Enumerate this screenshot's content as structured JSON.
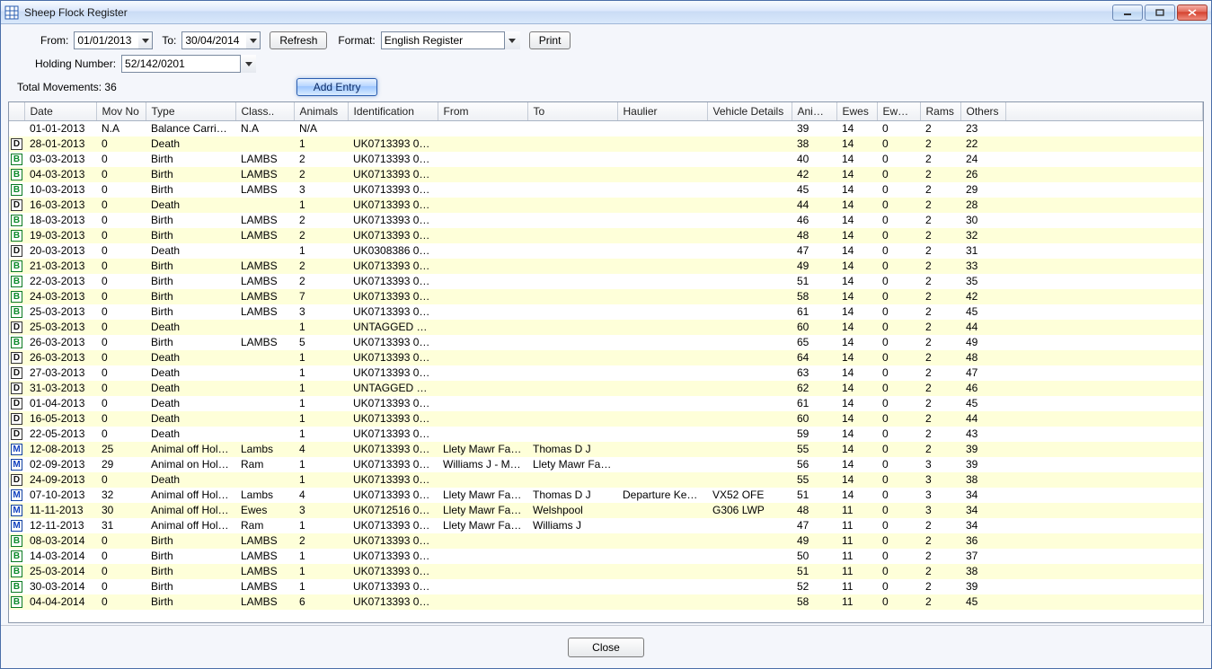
{
  "window": {
    "title": "Sheep Flock Register"
  },
  "toolbar": {
    "from_label": "From:",
    "from_value": "01/01/2013",
    "to_label": "To:",
    "to_value": "30/04/2014",
    "refresh": "Refresh",
    "format_label": "Format:",
    "format_value": "English Register",
    "print": "Print",
    "holding_label": "Holding Number:",
    "holding_value": "52/142/0201",
    "total_movements_label": "Total Movements:",
    "total_movements_value": "36",
    "add_entry": "Add Entry"
  },
  "footer": {
    "close": "Close"
  },
  "columns": [
    "Date",
    "Mov No",
    "Type",
    "Class..",
    "Animals",
    "Identification",
    "From",
    "To",
    "Haulier",
    "Vehicle Details",
    "Anim...",
    "Ewes",
    "Ewe ...",
    "Rams",
    "Others"
  ],
  "colors": {
    "alt_row": "#feffd9",
    "window_bg": "#f4f6fb",
    "titlebar_border": "#9fb7d8"
  },
  "rows": [
    {
      "icon": "",
      "date": "01-01-2013",
      "movno": "N.A",
      "type": "Balance Carried...",
      "class": "N.A",
      "animals": "N/A",
      "ident": "",
      "from": "",
      "to": "",
      "haulier": "",
      "vehicle": "",
      "anim": "39",
      "ewes": "14",
      "ewe2": "0",
      "rams": "2",
      "others": "23"
    },
    {
      "icon": "D",
      "date": "28-01-2013",
      "movno": "0",
      "type": "Death",
      "class": "",
      "animals": "1",
      "ident": "UK0713393 000...",
      "from": "",
      "to": "",
      "haulier": "",
      "vehicle": "",
      "anim": "38",
      "ewes": "14",
      "ewe2": "0",
      "rams": "2",
      "others": "22"
    },
    {
      "icon": "B",
      "date": "03-03-2013",
      "movno": "0",
      "type": "Birth",
      "class": "LAMBS",
      "animals": "2",
      "ident": "UK0713393 000...",
      "from": "",
      "to": "",
      "haulier": "",
      "vehicle": "",
      "anim": "40",
      "ewes": "14",
      "ewe2": "0",
      "rams": "2",
      "others": "24"
    },
    {
      "icon": "B",
      "date": "04-03-2013",
      "movno": "0",
      "type": "Birth",
      "class": "LAMBS",
      "animals": "2",
      "ident": "UK0713393 000...",
      "from": "",
      "to": "",
      "haulier": "",
      "vehicle": "",
      "anim": "42",
      "ewes": "14",
      "ewe2": "0",
      "rams": "2",
      "others": "26"
    },
    {
      "icon": "B",
      "date": "10-03-2013",
      "movno": "0",
      "type": "Birth",
      "class": "LAMBS",
      "animals": "3",
      "ident": "UK0713393 000...",
      "from": "",
      "to": "",
      "haulier": "",
      "vehicle": "",
      "anim": "45",
      "ewes": "14",
      "ewe2": "0",
      "rams": "2",
      "others": "29"
    },
    {
      "icon": "D",
      "date": "16-03-2013",
      "movno": "0",
      "type": "Death",
      "class": "",
      "animals": "1",
      "ident": "UK0713393 000...",
      "from": "",
      "to": "",
      "haulier": "",
      "vehicle": "",
      "anim": "44",
      "ewes": "14",
      "ewe2": "0",
      "rams": "2",
      "others": "28"
    },
    {
      "icon": "B",
      "date": "18-03-2013",
      "movno": "0",
      "type": "Birth",
      "class": "LAMBS",
      "animals": "2",
      "ident": "UK0713393 000...",
      "from": "",
      "to": "",
      "haulier": "",
      "vehicle": "",
      "anim": "46",
      "ewes": "14",
      "ewe2": "0",
      "rams": "2",
      "others": "30"
    },
    {
      "icon": "B",
      "date": "19-03-2013",
      "movno": "0",
      "type": "Birth",
      "class": "LAMBS",
      "animals": "2",
      "ident": "UK0713393 000...",
      "from": "",
      "to": "",
      "haulier": "",
      "vehicle": "",
      "anim": "48",
      "ewes": "14",
      "ewe2": "0",
      "rams": "2",
      "others": "32"
    },
    {
      "icon": "D",
      "date": "20-03-2013",
      "movno": "0",
      "type": "Death",
      "class": "",
      "animals": "1",
      "ident": "UK0308386 001...",
      "from": "",
      "to": "",
      "haulier": "",
      "vehicle": "",
      "anim": "47",
      "ewes": "14",
      "ewe2": "0",
      "rams": "2",
      "others": "31"
    },
    {
      "icon": "B",
      "date": "21-03-2013",
      "movno": "0",
      "type": "Birth",
      "class": "LAMBS",
      "animals": "2",
      "ident": "UK0713393 000...",
      "from": "",
      "to": "",
      "haulier": "",
      "vehicle": "",
      "anim": "49",
      "ewes": "14",
      "ewe2": "0",
      "rams": "2",
      "others": "33"
    },
    {
      "icon": "B",
      "date": "22-03-2013",
      "movno": "0",
      "type": "Birth",
      "class": "LAMBS",
      "animals": "2",
      "ident": "UK0713393 000...",
      "from": "",
      "to": "",
      "haulier": "",
      "vehicle": "",
      "anim": "51",
      "ewes": "14",
      "ewe2": "0",
      "rams": "2",
      "others": "35"
    },
    {
      "icon": "B",
      "date": "24-03-2013",
      "movno": "0",
      "type": "Birth",
      "class": "LAMBS",
      "animals": "7",
      "ident": "UK0713393 000...",
      "from": "",
      "to": "",
      "haulier": "",
      "vehicle": "",
      "anim": "58",
      "ewes": "14",
      "ewe2": "0",
      "rams": "2",
      "others": "42"
    },
    {
      "icon": "B",
      "date": "25-03-2013",
      "movno": "0",
      "type": "Birth",
      "class": "LAMBS",
      "animals": "3",
      "ident": "UK0713393 000...",
      "from": "",
      "to": "",
      "haulier": "",
      "vehicle": "",
      "anim": "61",
      "ewes": "14",
      "ewe2": "0",
      "rams": "2",
      "others": "45"
    },
    {
      "icon": "D",
      "date": "25-03-2013",
      "movno": "0",
      "type": "Death",
      "class": "",
      "animals": "1",
      "ident": "UNTAGGED LA...",
      "from": "",
      "to": "",
      "haulier": "",
      "vehicle": "",
      "anim": "60",
      "ewes": "14",
      "ewe2": "0",
      "rams": "2",
      "others": "44"
    },
    {
      "icon": "B",
      "date": "26-03-2013",
      "movno": "0",
      "type": "Birth",
      "class": "LAMBS",
      "animals": "5",
      "ident": "UK0713393 000...",
      "from": "",
      "to": "",
      "haulier": "",
      "vehicle": "",
      "anim": "65",
      "ewes": "14",
      "ewe2": "0",
      "rams": "2",
      "others": "49"
    },
    {
      "icon": "D",
      "date": "26-03-2013",
      "movno": "0",
      "type": "Death",
      "class": "",
      "animals": "1",
      "ident": "UK0713393 000...",
      "from": "",
      "to": "",
      "haulier": "",
      "vehicle": "",
      "anim": "64",
      "ewes": "14",
      "ewe2": "0",
      "rams": "2",
      "others": "48"
    },
    {
      "icon": "D",
      "date": "27-03-2013",
      "movno": "0",
      "type": "Death",
      "class": "",
      "animals": "1",
      "ident": "UK0713393 000...",
      "from": "",
      "to": "",
      "haulier": "",
      "vehicle": "",
      "anim": "63",
      "ewes": "14",
      "ewe2": "0",
      "rams": "2",
      "others": "47"
    },
    {
      "icon": "D",
      "date": "31-03-2013",
      "movno": "0",
      "type": "Death",
      "class": "",
      "animals": "1",
      "ident": "UNTAGGED LA...",
      "from": "",
      "to": "",
      "haulier": "",
      "vehicle": "",
      "anim": "62",
      "ewes": "14",
      "ewe2": "0",
      "rams": "2",
      "others": "46"
    },
    {
      "icon": "D",
      "date": "01-04-2013",
      "movno": "0",
      "type": "Death",
      "class": "",
      "animals": "1",
      "ident": "UK0713393 000...",
      "from": "",
      "to": "",
      "haulier": "",
      "vehicle": "",
      "anim": "61",
      "ewes": "14",
      "ewe2": "0",
      "rams": "2",
      "others": "45"
    },
    {
      "icon": "D",
      "date": "16-05-2013",
      "movno": "0",
      "type": "Death",
      "class": "",
      "animals": "1",
      "ident": "UK0713393 000...",
      "from": "",
      "to": "",
      "haulier": "",
      "vehicle": "",
      "anim": "60",
      "ewes": "14",
      "ewe2": "0",
      "rams": "2",
      "others": "44"
    },
    {
      "icon": "D",
      "date": "22-05-2013",
      "movno": "0",
      "type": "Death",
      "class": "",
      "animals": "1",
      "ident": "UK0713393 000...",
      "from": "",
      "to": "",
      "haulier": "",
      "vehicle": "",
      "anim": "59",
      "ewes": "14",
      "ewe2": "0",
      "rams": "2",
      "others": "43"
    },
    {
      "icon": "M",
      "date": "12-08-2013",
      "movno": "25",
      "type": "Animal off Holding",
      "class": "Lambs",
      "animals": "4",
      "ident": "UK0713393 000...",
      "from": "Llety Mawr Far...",
      "to": "Thomas D J",
      "haulier": "",
      "vehicle": "",
      "anim": "55",
      "ewes": "14",
      "ewe2": "0",
      "rams": "2",
      "others": "39"
    },
    {
      "icon": "M",
      "date": "02-09-2013",
      "movno": "29",
      "type": "Animal on Holding",
      "class": "Ram",
      "animals": "1",
      "ident": "UK0713393 000...",
      "from": "Williams J - Mr ...",
      "to": "Llety Mawr Far...",
      "haulier": "",
      "vehicle": "",
      "anim": "56",
      "ewes": "14",
      "ewe2": "0",
      "rams": "3",
      "others": "39"
    },
    {
      "icon": "D",
      "date": "24-09-2013",
      "movno": "0",
      "type": "Death",
      "class": "",
      "animals": "1",
      "ident": "UK0713393 000...",
      "from": "",
      "to": "",
      "haulier": "",
      "vehicle": "",
      "anim": "55",
      "ewes": "14",
      "ewe2": "0",
      "rams": "3",
      "others": "38"
    },
    {
      "icon": "M",
      "date": "07-10-2013",
      "movno": "32",
      "type": "Animal off Holding",
      "class": "Lambs",
      "animals": "4",
      "ident": "UK0713393 000...",
      "from": "Llety Mawr Far...",
      "to": "Thomas D J",
      "haulier": "Departure Keeper",
      "vehicle": "VX52 OFE",
      "anim": "51",
      "ewes": "14",
      "ewe2": "0",
      "rams": "3",
      "others": "34"
    },
    {
      "icon": "M",
      "date": "11-11-2013",
      "movno": "30",
      "type": "Animal off Holding",
      "class": "Ewes",
      "animals": "3",
      "ident": "UK0712516 001...",
      "from": "Llety Mawr Far...",
      "to": "Welshpool",
      "haulier": "",
      "vehicle": "G306 LWP",
      "anim": "48",
      "ewes": "11",
      "ewe2": "0",
      "rams": "3",
      "others": "34"
    },
    {
      "icon": "M",
      "date": "12-11-2013",
      "movno": "31",
      "type": "Animal off Holding",
      "class": "Ram",
      "animals": "1",
      "ident": "UK0713393 000...",
      "from": "Llety Mawr Far...",
      "to": "Williams J",
      "haulier": "",
      "vehicle": "",
      "anim": "47",
      "ewes": "11",
      "ewe2": "0",
      "rams": "2",
      "others": "34"
    },
    {
      "icon": "B",
      "date": "08-03-2014",
      "movno": "0",
      "type": "Birth",
      "class": "LAMBS",
      "animals": "2",
      "ident": "UK0713393 000...",
      "from": "",
      "to": "",
      "haulier": "",
      "vehicle": "",
      "anim": "49",
      "ewes": "11",
      "ewe2": "0",
      "rams": "2",
      "others": "36"
    },
    {
      "icon": "B",
      "date": "14-03-2014",
      "movno": "0",
      "type": "Birth",
      "class": "LAMBS",
      "animals": "1",
      "ident": "UK0713393 000...",
      "from": "",
      "to": "",
      "haulier": "",
      "vehicle": "",
      "anim": "50",
      "ewes": "11",
      "ewe2": "0",
      "rams": "2",
      "others": "37"
    },
    {
      "icon": "B",
      "date": "25-03-2014",
      "movno": "0",
      "type": "Birth",
      "class": "LAMBS",
      "animals": "1",
      "ident": "UK0713393 000...",
      "from": "",
      "to": "",
      "haulier": "",
      "vehicle": "",
      "anim": "51",
      "ewes": "11",
      "ewe2": "0",
      "rams": "2",
      "others": "38"
    },
    {
      "icon": "B",
      "date": "30-03-2014",
      "movno": "0",
      "type": "Birth",
      "class": "LAMBS",
      "animals": "1",
      "ident": "UK0713393 000...",
      "from": "",
      "to": "",
      "haulier": "",
      "vehicle": "",
      "anim": "52",
      "ewes": "11",
      "ewe2": "0",
      "rams": "2",
      "others": "39"
    },
    {
      "icon": "B",
      "date": "04-04-2014",
      "movno": "0",
      "type": "Birth",
      "class": "LAMBS",
      "animals": "6",
      "ident": "UK0713393 000...",
      "from": "",
      "to": "",
      "haulier": "",
      "vehicle": "",
      "anim": "58",
      "ewes": "11",
      "ewe2": "0",
      "rams": "2",
      "others": "45"
    }
  ]
}
